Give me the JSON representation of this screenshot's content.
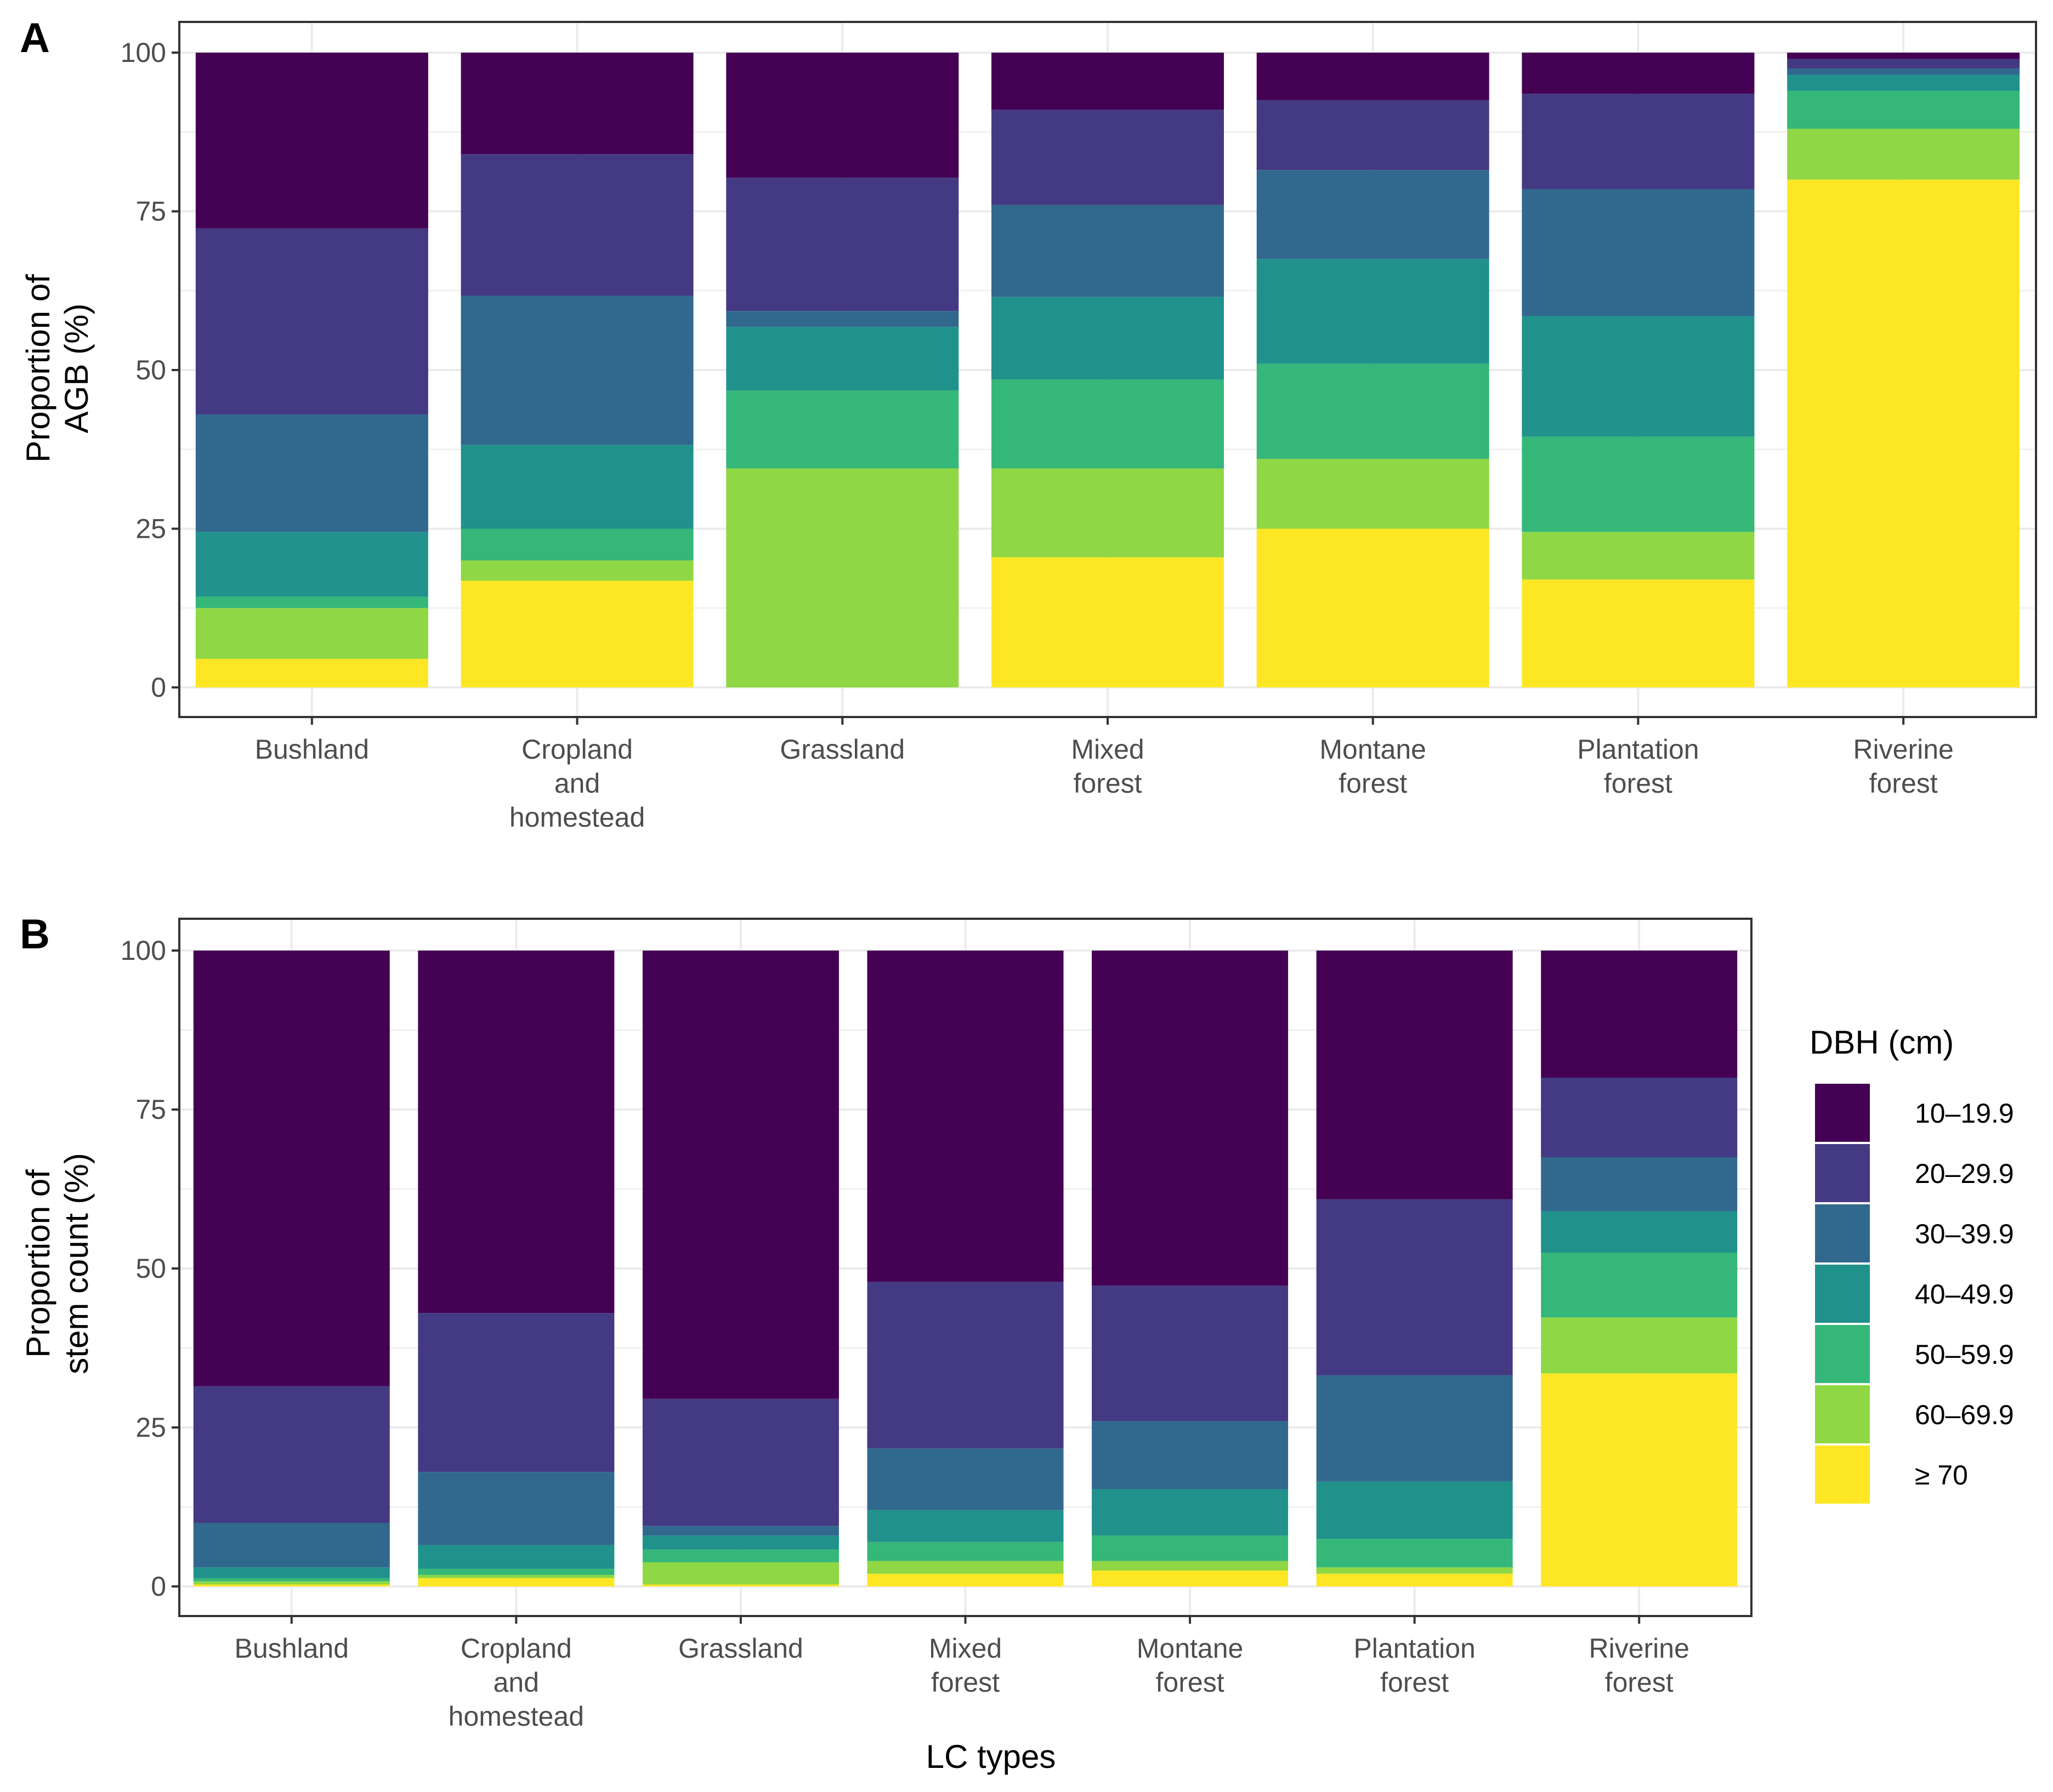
{
  "colors": {
    "10–19.9": "#440154",
    "20–29.9": "#443983",
    "30–39.9": "#31688e",
    "40–49.9": "#21918c",
    "50–59.9": "#35b779",
    "60–69.9": "#8fd744",
    "≥ 70": "#fde725",
    "grid": "#ebebeb",
    "panel_border": "#333333",
    "tick_text": "#4d4d4d"
  },
  "legend": {
    "title": "DBH (cm)",
    "entries": [
      "10–19.9",
      "20–29.9",
      "30–39.9",
      "40–49.9",
      "50–59.9",
      "60–69.9",
      "≥ 70"
    ]
  },
  "x_title": "LC types",
  "chart_data": [
    {
      "panel": "A",
      "type": "bar",
      "stacked": true,
      "ylabel_lines": [
        "Proportion of",
        "AGB (%)"
      ],
      "ylim": [
        0,
        100
      ],
      "yticks": [
        0,
        25,
        50,
        75,
        100
      ],
      "categories": [
        [
          "Bushland"
        ],
        [
          "Cropland",
          "and",
          "homestead"
        ],
        [
          "Grassland"
        ],
        [
          "Mixed",
          "forest"
        ],
        [
          "Montane",
          "forest"
        ],
        [
          "Plantation",
          "forest"
        ],
        [
          "Riverine",
          "forest"
        ]
      ],
      "series": [
        {
          "name": "≥ 70",
          "values": [
            4.5,
            16.8,
            0.0,
            20.5,
            25.0,
            17.0,
            80.0
          ]
        },
        {
          "name": "60–69.9",
          "values": [
            8.0,
            3.2,
            34.5,
            14.0,
            11.0,
            7.5,
            8.0
          ]
        },
        {
          "name": "50–59.9",
          "values": [
            1.8,
            5.0,
            12.3,
            14.0,
            15.0,
            15.0,
            6.0
          ]
        },
        {
          "name": "40–49.9",
          "values": [
            10.2,
            13.2,
            10.0,
            13.0,
            16.5,
            19.0,
            2.5
          ]
        },
        {
          "name": "30–39.9",
          "values": [
            18.5,
            23.5,
            2.5,
            14.5,
            14.0,
            20.0,
            1.0
          ]
        },
        {
          "name": "20–29.9",
          "values": [
            29.3,
            22.3,
            21.0,
            15.0,
            11.0,
            15.0,
            1.5
          ]
        },
        {
          "name": "10–19.9",
          "values": [
            27.7,
            16.0,
            19.7,
            9.0,
            7.5,
            6.5,
            1.0
          ]
        }
      ]
    },
    {
      "panel": "B",
      "type": "bar",
      "stacked": true,
      "ylabel_lines": [
        "Proportion of",
        "stem count (%)"
      ],
      "ylim": [
        0,
        100
      ],
      "yticks": [
        0,
        25,
        50,
        75,
        100
      ],
      "categories": [
        [
          "Bushland"
        ],
        [
          "Cropland",
          "and",
          "homestead"
        ],
        [
          "Grassland"
        ],
        [
          "Mixed",
          "forest"
        ],
        [
          "Montane",
          "forest"
        ],
        [
          "Plantation",
          "forest"
        ],
        [
          "Riverine",
          "forest"
        ]
      ],
      "series": [
        {
          "name": "≥ 70",
          "values": [
            0.3,
            1.3,
            0.3,
            2.0,
            2.5,
            2.0,
            33.5
          ]
        },
        {
          "name": "60–69.9",
          "values": [
            0.5,
            0.5,
            3.5,
            2.0,
            1.5,
            1.0,
            8.8
          ]
        },
        {
          "name": "50–59.9",
          "values": [
            0.5,
            1.0,
            2.0,
            3.0,
            4.0,
            4.5,
            10.2
          ]
        },
        {
          "name": "40–49.9",
          "values": [
            1.7,
            3.7,
            2.2,
            5.0,
            7.3,
            9.0,
            6.5
          ]
        },
        {
          "name": "30–39.9",
          "values": [
            7.0,
            11.5,
            1.5,
            9.7,
            10.7,
            16.7,
            8.5
          ]
        },
        {
          "name": "20–29.9",
          "values": [
            21.5,
            25.0,
            20.0,
            26.2,
            21.3,
            27.7,
            12.5
          ]
        },
        {
          "name": "10–19.9",
          "values": [
            68.5,
            57.0,
            70.5,
            52.1,
            52.7,
            39.1,
            20.0
          ]
        }
      ]
    }
  ]
}
